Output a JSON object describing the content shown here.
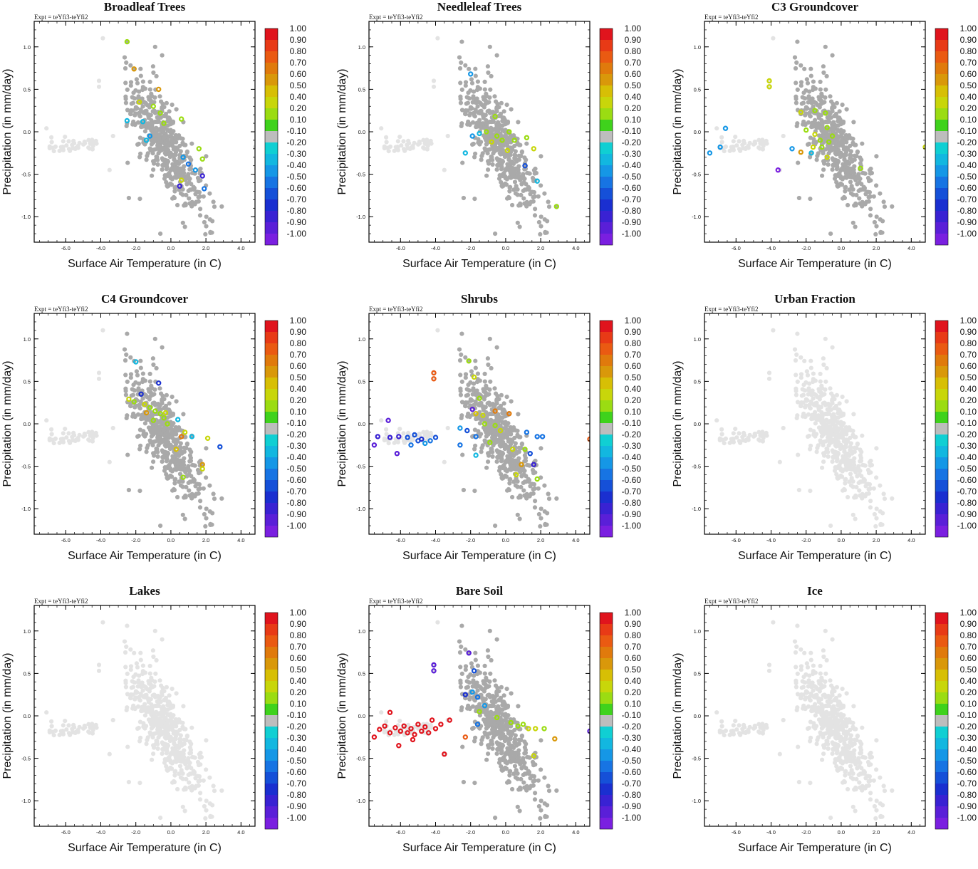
{
  "figure": {
    "expt_label": "Expt = teYfi3-teYfi2",
    "xlabel": "Surface Air Temperature (in C)",
    "ylabel": "Precipitation (in mm/day)",
    "xticks": [
      "-6.0",
      "-4.0",
      "-2.0",
      "0.0",
      "2.0",
      "4.0"
    ],
    "yticks": [
      "1.0",
      "0.5",
      "0.0",
      "-0.5",
      "-1.0"
    ],
    "colorbar_labels": [
      "1.00",
      "0.90",
      "0.80",
      "0.70",
      "0.60",
      "0.50",
      "0.40",
      "0.20",
      "0.10",
      "-0.10",
      "-0.20",
      "-0.30",
      "-0.40",
      "-0.50",
      "-0.60",
      "-0.70",
      "-0.80",
      "-0.90",
      "-1.00"
    ],
    "colorbar_colors": [
      "#e0141d",
      "#e83a16",
      "#ea5a12",
      "#e07a0c",
      "#d9980a",
      "#d7bf05",
      "#c8d60a",
      "#9bdc12",
      "#3fd21c",
      "#bdbdbd",
      "#10cfd3",
      "#12b7e0",
      "#1597e6",
      "#1774e3",
      "#1550d8",
      "#1a2fd0",
      "#3922d3",
      "#5a1fd8",
      "#7a1fe0"
    ],
    "bg_point_color": "#e3e3e3",
    "mid_point_color": "#a9a9a9"
  },
  "chart_data": [
    {
      "type": "scatter",
      "title": "Broadleaf Trees",
      "xlim": [
        -7.8,
        4.8
      ],
      "ylim": [
        -1.3,
        1.3
      ],
      "highlights": [
        {
          "x": -2.5,
          "y": 1.06,
          "c": 0.15
        },
        {
          "x": -2.1,
          "y": 0.74,
          "c": 0.6
        },
        {
          "x": -0.7,
          "y": 0.5,
          "c": 0.6
        },
        {
          "x": -1.8,
          "y": 0.35,
          "c": 0.3
        },
        {
          "x": -1.0,
          "y": 0.3,
          "c": 0.2
        },
        {
          "x": -0.6,
          "y": 0.22,
          "c": 0.15
        },
        {
          "x": -0.4,
          "y": 0.1,
          "c": 0.15
        },
        {
          "x": 0.6,
          "y": 0.15,
          "c": 0.15
        },
        {
          "x": -2.5,
          "y": 0.13,
          "c": -0.2
        },
        {
          "x": -1.6,
          "y": 0.12,
          "c": -0.25
        },
        {
          "x": -1.2,
          "y": -0.05,
          "c": -0.3
        },
        {
          "x": 1.6,
          "y": -0.2,
          "c": 0.2
        },
        {
          "x": 1.8,
          "y": -0.32,
          "c": 0.15
        },
        {
          "x": 0.7,
          "y": -0.3,
          "c": -0.3
        },
        {
          "x": 1.0,
          "y": -0.38,
          "c": -0.45
        },
        {
          "x": 1.4,
          "y": -0.45,
          "c": -0.3
        },
        {
          "x": 1.8,
          "y": -0.52,
          "c": -0.7
        },
        {
          "x": 0.6,
          "y": -0.57,
          "c": 0.3
        },
        {
          "x": 1.9,
          "y": -0.67,
          "c": -0.45
        },
        {
          "x": 0.5,
          "y": -0.64,
          "c": -0.7
        },
        {
          "x": -1.4,
          "y": -0.1,
          "c": -0.2
        }
      ]
    },
    {
      "type": "scatter",
      "title": "Needleleaf Trees",
      "xlim": [
        -7.8,
        4.8
      ],
      "ylim": [
        -1.3,
        1.3
      ],
      "highlights": [
        {
          "x": -2.0,
          "y": 0.68,
          "c": -0.3
        },
        {
          "x": -0.6,
          "y": 0.18,
          "c": 0.15
        },
        {
          "x": -1.1,
          "y": 0.0,
          "c": 0.15
        },
        {
          "x": -0.5,
          "y": -0.05,
          "c": 0.2
        },
        {
          "x": -0.2,
          "y": -0.1,
          "c": 0.15
        },
        {
          "x": 0.2,
          "y": 0.0,
          "c": 0.15
        },
        {
          "x": 0.5,
          "y": -0.1,
          "c": 0.2
        },
        {
          "x": 1.2,
          "y": -0.07,
          "c": 0.15
        },
        {
          "x": 1.6,
          "y": -0.2,
          "c": 0.4
        },
        {
          "x": 1.1,
          "y": -0.4,
          "c": -0.55
        },
        {
          "x": 1.8,
          "y": -0.58,
          "c": -0.25
        },
        {
          "x": 2.9,
          "y": -0.88,
          "c": 0.15
        },
        {
          "x": -2.3,
          "y": -0.25,
          "c": -0.25
        },
        {
          "x": -1.9,
          "y": -0.05,
          "c": -0.3
        },
        {
          "x": -1.5,
          "y": -0.02,
          "c": -0.2
        },
        {
          "x": -0.8,
          "y": -0.12,
          "c": 0.3
        },
        {
          "x": 0.1,
          "y": -0.22,
          "c": 0.3
        }
      ]
    },
    {
      "type": "scatter",
      "title": "C3 Groundcover",
      "xlim": [
        -7.8,
        4.8
      ],
      "ylim": [
        -1.3,
        1.3
      ],
      "highlights": [
        {
          "x": -6.6,
          "y": 0.04,
          "c": -0.3
        },
        {
          "x": -7.5,
          "y": -0.25,
          "c": -0.3
        },
        {
          "x": -6.9,
          "y": -0.18,
          "c": -0.3
        },
        {
          "x": -4.1,
          "y": 0.6,
          "c": 0.3
        },
        {
          "x": -4.1,
          "y": 0.53,
          "c": 0.3
        },
        {
          "x": -2.3,
          "y": 0.23,
          "c": 0.4
        },
        {
          "x": -1.5,
          "y": 0.25,
          "c": 0.15
        },
        {
          "x": -0.9,
          "y": 0.22,
          "c": 0.15
        },
        {
          "x": -2.0,
          "y": 0.02,
          "c": 0.2
        },
        {
          "x": -1.5,
          "y": -0.03,
          "c": 0.3
        },
        {
          "x": -1.2,
          "y": -0.1,
          "c": 0.2
        },
        {
          "x": -0.8,
          "y": 0.05,
          "c": 0.2
        },
        {
          "x": -0.5,
          "y": -0.05,
          "c": 0.2
        },
        {
          "x": -0.7,
          "y": -0.12,
          "c": 0.15
        },
        {
          "x": -1.6,
          "y": -0.18,
          "c": 0.4
        },
        {
          "x": -2.3,
          "y": -0.24,
          "c": 0.6
        },
        {
          "x": -1.1,
          "y": -0.18,
          "c": 0.15
        },
        {
          "x": -3.6,
          "y": -0.45,
          "c": -0.9
        },
        {
          "x": -1.7,
          "y": -0.25,
          "c": -0.2
        },
        {
          "x": -2.8,
          "y": -0.2,
          "c": -0.3
        },
        {
          "x": 1.1,
          "y": -0.43,
          "c": 0.15
        },
        {
          "x": -0.8,
          "y": -0.3,
          "c": 0.3
        },
        {
          "x": 4.8,
          "y": -0.18,
          "c": 0.3
        }
      ]
    },
    {
      "type": "scatter",
      "title": "C4 Groundcover",
      "xlim": [
        -7.8,
        4.8
      ],
      "ylim": [
        -1.3,
        1.3
      ],
      "highlights": [
        {
          "x": -2.0,
          "y": 0.73,
          "c": -0.25
        },
        {
          "x": -1.7,
          "y": 0.35,
          "c": -0.6
        },
        {
          "x": -0.7,
          "y": 0.48,
          "c": -0.6
        },
        {
          "x": -2.4,
          "y": 0.29,
          "c": 0.4
        },
        {
          "x": -2.1,
          "y": 0.26,
          "c": 0.15
        },
        {
          "x": -1.5,
          "y": 0.23,
          "c": 0.3
        },
        {
          "x": -1.2,
          "y": 0.19,
          "c": 0.2
        },
        {
          "x": -1.4,
          "y": 0.13,
          "c": 0.6
        },
        {
          "x": -0.9,
          "y": 0.15,
          "c": 0.15
        },
        {
          "x": -0.6,
          "y": 0.12,
          "c": 0.15
        },
        {
          "x": -0.4,
          "y": 0.07,
          "c": 0.15
        },
        {
          "x": -1.0,
          "y": 0.04,
          "c": 0.15
        },
        {
          "x": -0.2,
          "y": 0.0,
          "c": 0.2
        },
        {
          "x": 0.4,
          "y": 0.05,
          "c": -0.25
        },
        {
          "x": 0.8,
          "y": -0.1,
          "c": 0.4
        },
        {
          "x": 0.6,
          "y": -0.15,
          "c": 0.7
        },
        {
          "x": 1.2,
          "y": -0.15,
          "c": -0.25
        },
        {
          "x": 2.1,
          "y": -0.17,
          "c": 0.3
        },
        {
          "x": 2.8,
          "y": -0.27,
          "c": -0.55
        },
        {
          "x": 0.3,
          "y": -0.3,
          "c": 0.45
        },
        {
          "x": 1.8,
          "y": -0.48,
          "c": 0.6
        },
        {
          "x": 1.8,
          "y": -0.53,
          "c": 0.4
        },
        {
          "x": 0.7,
          "y": -0.63,
          "c": 0.15
        },
        {
          "x": -0.3,
          "y": 0.13,
          "c": 0.3
        }
      ]
    },
    {
      "type": "scatter",
      "title": "Shrubs",
      "xlim": [
        -7.8,
        4.8
      ],
      "ylim": [
        -1.3,
        1.3
      ],
      "highlights": [
        {
          "x": -6.7,
          "y": 0.04,
          "c": -0.8
        },
        {
          "x": -7.5,
          "y": -0.25,
          "c": -0.8
        },
        {
          "x": -7.3,
          "y": -0.15,
          "c": -0.7
        },
        {
          "x": -6.6,
          "y": -0.16,
          "c": -0.7
        },
        {
          "x": -6.1,
          "y": -0.15,
          "c": -0.7
        },
        {
          "x": -5.6,
          "y": -0.16,
          "c": -0.55
        },
        {
          "x": -5.2,
          "y": -0.13,
          "c": -0.5
        },
        {
          "x": -5.0,
          "y": -0.2,
          "c": -0.5
        },
        {
          "x": -4.8,
          "y": -0.18,
          "c": -0.6
        },
        {
          "x": -4.6,
          "y": -0.23,
          "c": -0.3
        },
        {
          "x": -4.3,
          "y": -0.2,
          "c": -0.45
        },
        {
          "x": -4.0,
          "y": -0.16,
          "c": -0.5
        },
        {
          "x": -6.2,
          "y": -0.35,
          "c": -0.8
        },
        {
          "x": -5.4,
          "y": -0.25,
          "c": -0.4
        },
        {
          "x": -4.1,
          "y": 0.6,
          "c": 0.8
        },
        {
          "x": -4.1,
          "y": 0.53,
          "c": 0.8
        },
        {
          "x": -2.1,
          "y": 0.74,
          "c": 0.2
        },
        {
          "x": -1.8,
          "y": 0.55,
          "c": 0.3
        },
        {
          "x": -1.5,
          "y": 0.3,
          "c": 0.2
        },
        {
          "x": -1.9,
          "y": 0.17,
          "c": -0.8
        },
        {
          "x": -1.7,
          "y": 0.12,
          "c": 0.5
        },
        {
          "x": -1.3,
          "y": 0.1,
          "c": 0.3
        },
        {
          "x": -0.6,
          "y": 0.15,
          "c": 0.7
        },
        {
          "x": 0.2,
          "y": 0.12,
          "c": 0.7
        },
        {
          "x": -2.6,
          "y": -0.05,
          "c": -0.3
        },
        {
          "x": -2.2,
          "y": -0.08,
          "c": -0.55
        },
        {
          "x": -1.7,
          "y": -0.15,
          "c": -0.4
        },
        {
          "x": -1.2,
          "y": 0.0,
          "c": 0.2
        },
        {
          "x": -0.6,
          "y": -0.02,
          "c": 0.2
        },
        {
          "x": -0.3,
          "y": -0.08,
          "c": 0.4
        },
        {
          "x": 1.2,
          "y": -0.1,
          "c": -0.4
        },
        {
          "x": 1.8,
          "y": -0.15,
          "c": -0.4
        },
        {
          "x": 2.1,
          "y": -0.15,
          "c": -0.45
        },
        {
          "x": -2.6,
          "y": -0.25,
          "c": -0.4
        },
        {
          "x": -1.7,
          "y": -0.37,
          "c": -0.25
        },
        {
          "x": 0.4,
          "y": -0.3,
          "c": 0.4
        },
        {
          "x": 1.4,
          "y": -0.35,
          "c": -0.55
        },
        {
          "x": 0.9,
          "y": -0.48,
          "c": 0.6
        },
        {
          "x": 1.6,
          "y": -0.48,
          "c": -0.7
        },
        {
          "x": 0.6,
          "y": -0.6,
          "c": 0.4
        },
        {
          "x": 1.8,
          "y": -0.65,
          "c": 0.2
        },
        {
          "x": 4.8,
          "y": -0.18,
          "c": 0.8
        },
        {
          "x": 1.1,
          "y": -0.3,
          "c": 0.2
        },
        {
          "x": -0.9,
          "y": -0.22,
          "c": 0.15
        }
      ]
    },
    {
      "type": "scatter",
      "title": "Urban Fraction",
      "xlim": [
        -7.8,
        4.8
      ],
      "ylim": [
        -1.3,
        1.3
      ],
      "highlights": []
    },
    {
      "type": "scatter",
      "title": "Lakes",
      "xlim": [
        -7.8,
        4.8
      ],
      "ylim": [
        -1.3,
        1.3
      ],
      "highlights": []
    },
    {
      "type": "scatter",
      "title": "Bare Soil",
      "xlim": [
        -7.8,
        4.8
      ],
      "ylim": [
        -1.3,
        1.3
      ],
      "highlights": [
        {
          "x": -6.6,
          "y": 0.04,
          "c": 1.0
        },
        {
          "x": -7.5,
          "y": -0.25,
          "c": 1.0
        },
        {
          "x": -7.2,
          "y": -0.16,
          "c": 1.0
        },
        {
          "x": -6.9,
          "y": -0.12,
          "c": 1.0
        },
        {
          "x": -6.6,
          "y": -0.2,
          "c": 1.0
        },
        {
          "x": -6.3,
          "y": -0.14,
          "c": 1.0
        },
        {
          "x": -6.0,
          "y": -0.18,
          "c": 1.0
        },
        {
          "x": -5.8,
          "y": -0.12,
          "c": 1.0
        },
        {
          "x": -5.6,
          "y": -0.2,
          "c": 1.0
        },
        {
          "x": -5.4,
          "y": -0.15,
          "c": 1.0
        },
        {
          "x": -5.2,
          "y": -0.22,
          "c": 1.0
        },
        {
          "x": -5.0,
          "y": -0.1,
          "c": 1.0
        },
        {
          "x": -4.8,
          "y": -0.18,
          "c": 1.0
        },
        {
          "x": -4.6,
          "y": -0.13,
          "c": 1.0
        },
        {
          "x": -4.4,
          "y": -0.2,
          "c": 1.0
        },
        {
          "x": -4.2,
          "y": -0.05,
          "c": 1.0
        },
        {
          "x": -4.0,
          "y": -0.15,
          "c": 1.0
        },
        {
          "x": -3.7,
          "y": -0.1,
          "c": 1.0
        },
        {
          "x": -6.1,
          "y": -0.35,
          "c": 1.0
        },
        {
          "x": -5.3,
          "y": -0.28,
          "c": 1.0
        },
        {
          "x": -3.5,
          "y": -0.45,
          "c": 1.0
        },
        {
          "x": -3.2,
          "y": -0.05,
          "c": 1.0
        },
        {
          "x": -4.1,
          "y": 0.6,
          "c": -0.85
        },
        {
          "x": -4.1,
          "y": 0.53,
          "c": -0.85
        },
        {
          "x": -2.1,
          "y": 0.74,
          "c": -0.8
        },
        {
          "x": -1.8,
          "y": 0.53,
          "c": -0.55
        },
        {
          "x": -2.3,
          "y": 0.25,
          "c": -0.6
        },
        {
          "x": -1.9,
          "y": 0.28,
          "c": -0.3
        },
        {
          "x": -1.6,
          "y": 0.22,
          "c": -0.4
        },
        {
          "x": -1.2,
          "y": 0.12,
          "c": -0.3
        },
        {
          "x": -1.5,
          "y": 0.05,
          "c": 0.2
        },
        {
          "x": -0.5,
          "y": -0.02,
          "c": 0.15
        },
        {
          "x": 0.3,
          "y": -0.08,
          "c": 0.2
        },
        {
          "x": 0.7,
          "y": -0.12,
          "c": 0.15
        },
        {
          "x": 1.0,
          "y": -0.1,
          "c": 0.2
        },
        {
          "x": 1.3,
          "y": -0.15,
          "c": 0.4
        },
        {
          "x": 1.7,
          "y": -0.15,
          "c": 0.3
        },
        {
          "x": 2.2,
          "y": -0.15,
          "c": 0.15
        },
        {
          "x": 2.8,
          "y": -0.27,
          "c": 0.55
        },
        {
          "x": -2.3,
          "y": -0.25,
          "c": 0.8
        },
        {
          "x": -1.6,
          "y": -0.1,
          "c": -0.4
        },
        {
          "x": 1.6,
          "y": -0.47,
          "c": 0.3
        },
        {
          "x": 4.8,
          "y": -0.18,
          "c": -0.85
        }
      ]
    },
    {
      "type": "scatter",
      "title": "Ice",
      "xlim": [
        -7.8,
        4.8
      ],
      "ylim": [
        -1.3,
        1.3
      ],
      "highlights": []
    }
  ]
}
